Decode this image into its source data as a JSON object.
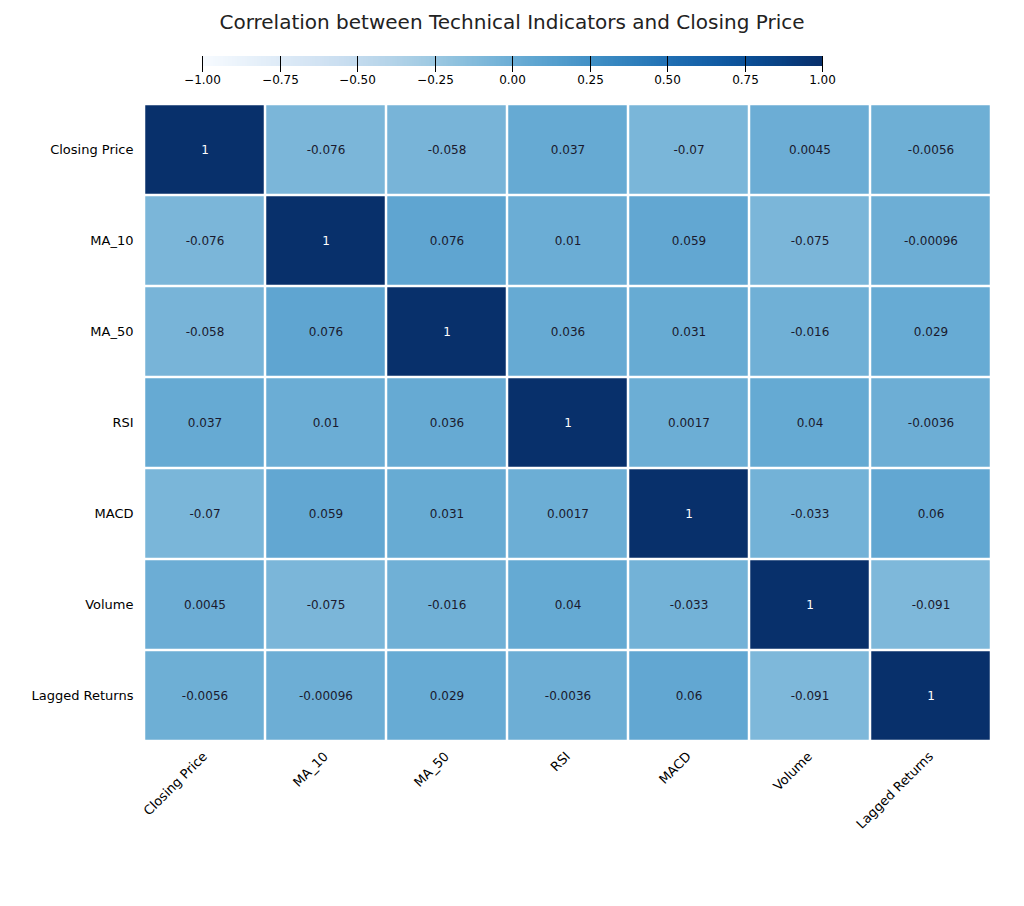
{
  "chart_data": {
    "type": "heatmap",
    "title": "Correlation between Technical Indicators and Closing Price",
    "categories": [
      "Closing Price",
      "MA_10",
      "MA_50",
      "RSI",
      "MACD",
      "Volume",
      "Lagged Returns"
    ],
    "values": [
      [
        1,
        -0.076,
        -0.058,
        0.037,
        -0.07,
        0.0045,
        -0.0056
      ],
      [
        -0.076,
        1,
        0.076,
        0.01,
        0.059,
        -0.075,
        -0.00096
      ],
      [
        -0.058,
        0.076,
        1,
        0.036,
        0.031,
        -0.016,
        0.029
      ],
      [
        0.037,
        0.01,
        0.036,
        1,
        0.0017,
        0.04,
        -0.0036
      ],
      [
        -0.07,
        0.059,
        0.031,
        0.0017,
        1,
        -0.033,
        0.06
      ],
      [
        0.0045,
        -0.075,
        -0.016,
        0.04,
        -0.033,
        1,
        -0.091
      ],
      [
        -0.0056,
        -0.00096,
        0.029,
        -0.0036,
        0.06,
        -0.091,
        1
      ]
    ],
    "data_labels": true,
    "colorbar_range": [
      -1.0,
      1.0
    ],
    "colorbar_ticks": [
      {
        "value": 1.0,
        "label": "1.00"
      },
      {
        "value": 0.75,
        "label": "0.75"
      },
      {
        "value": 0.5,
        "label": "0.50"
      },
      {
        "value": 0.25,
        "label": "0.25"
      },
      {
        "value": 0.0,
        "label": "0.00"
      },
      {
        "value": -0.25,
        "label": "−0.25"
      },
      {
        "value": -0.5,
        "label": "−0.50"
      },
      {
        "value": -0.75,
        "label": "−0.75"
      },
      {
        "value": -1.0,
        "label": "−1.00"
      }
    ]
  }
}
